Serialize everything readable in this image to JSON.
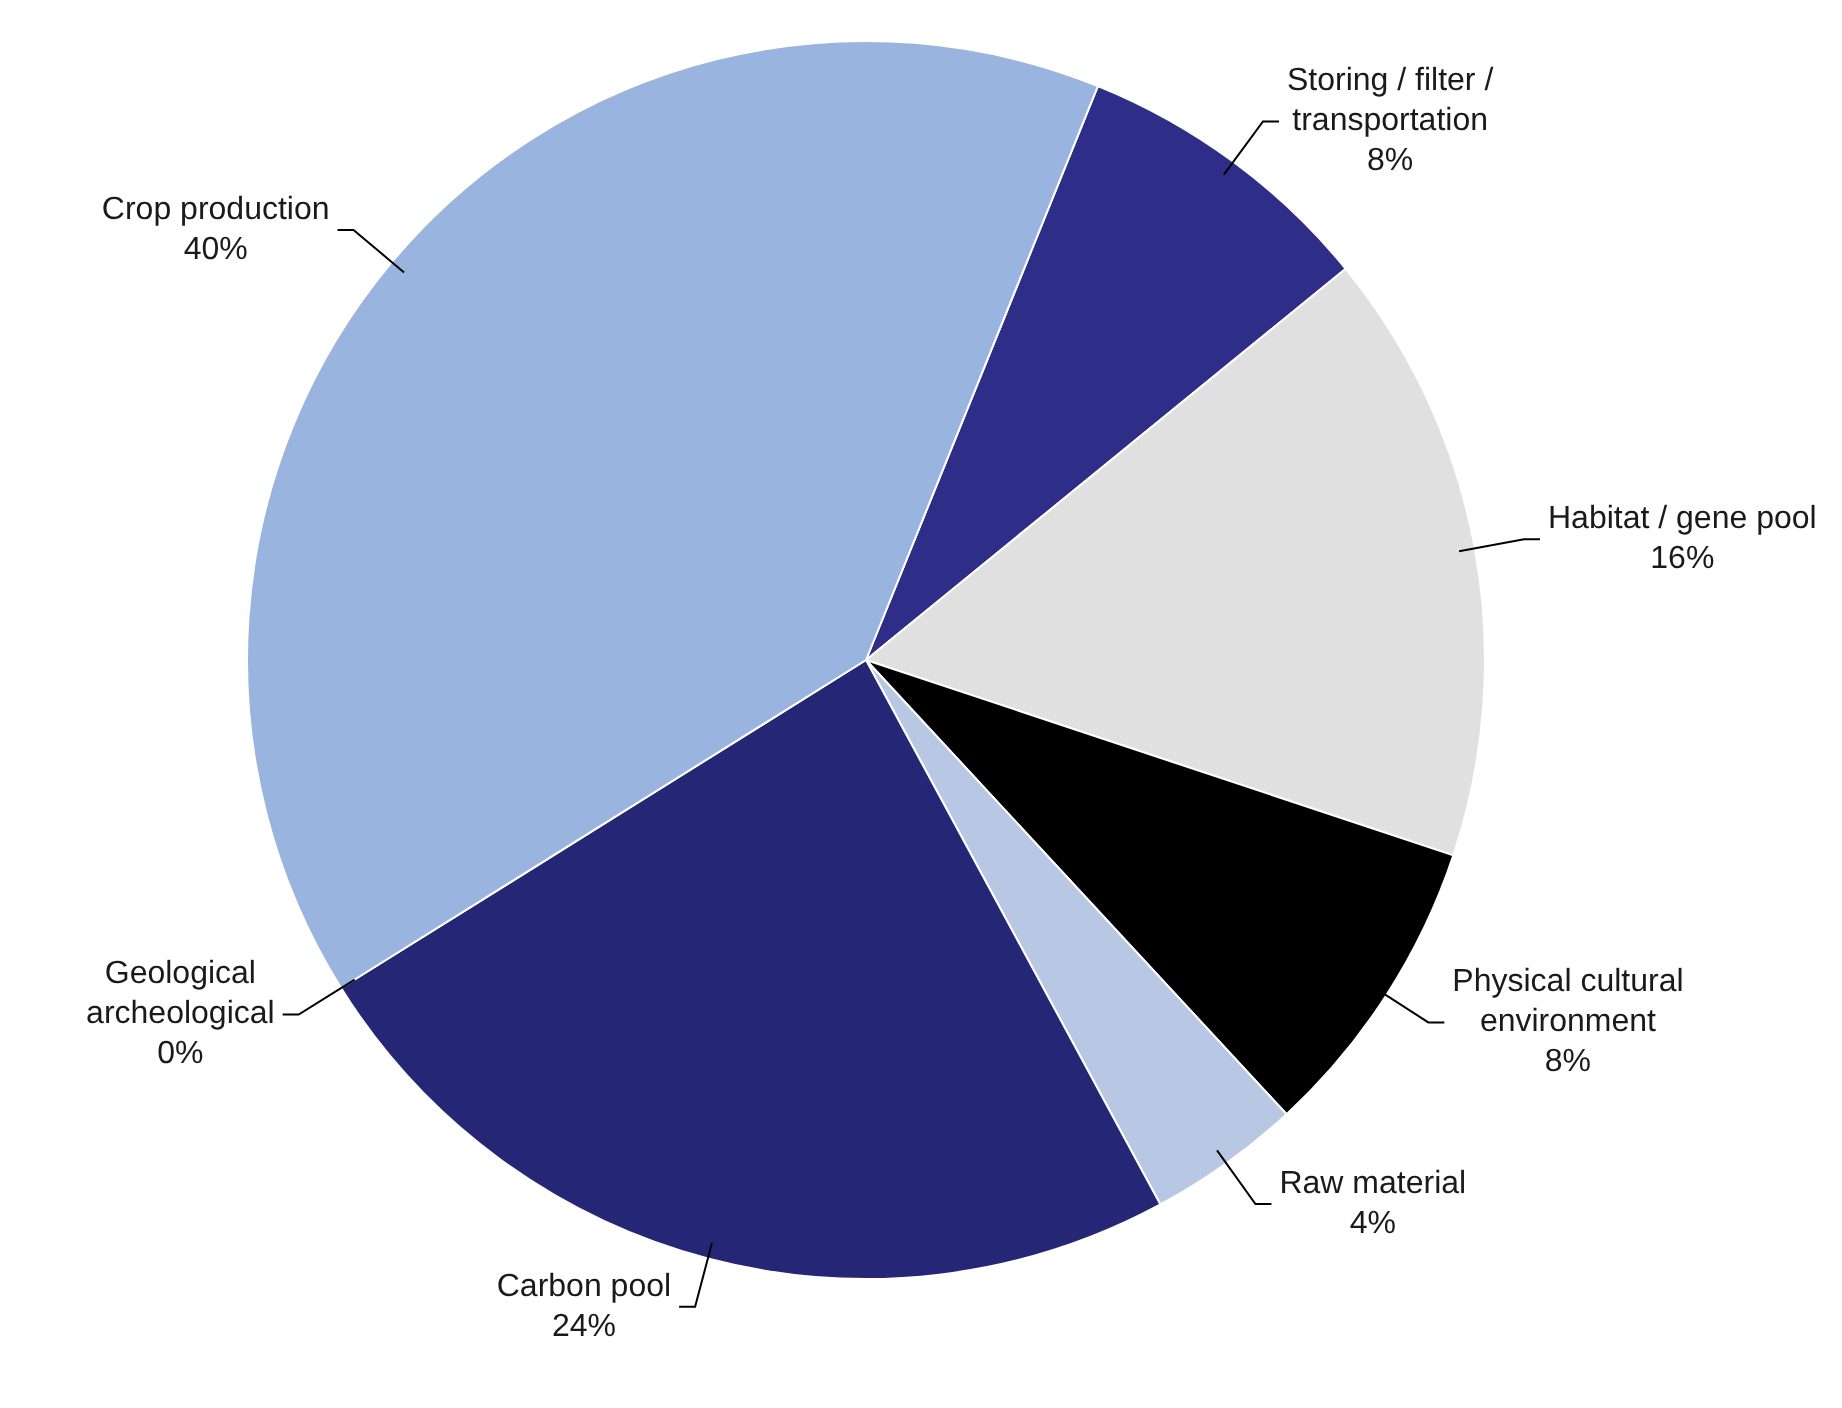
{
  "chart_data": {
    "type": "pie",
    "categories": [
      "Storing / filter / transportation",
      "Habitat / gene pool",
      "Physical cultural environment",
      "Raw material",
      "Carbon pool",
      "Geological archeological",
      "Crop production"
    ],
    "values": [
      8,
      16,
      8,
      4,
      24,
      0,
      40
    ],
    "value_labels": [
      "8%",
      "16%",
      "8%",
      "4%",
      "24%",
      "0%",
      "40%"
    ],
    "colors": [
      "#2e2d87",
      "#e0e0e0",
      "#000000",
      "#b8c8e4",
      "#262677",
      "#7f7f7f",
      "#9ab4e0"
    ]
  }
}
